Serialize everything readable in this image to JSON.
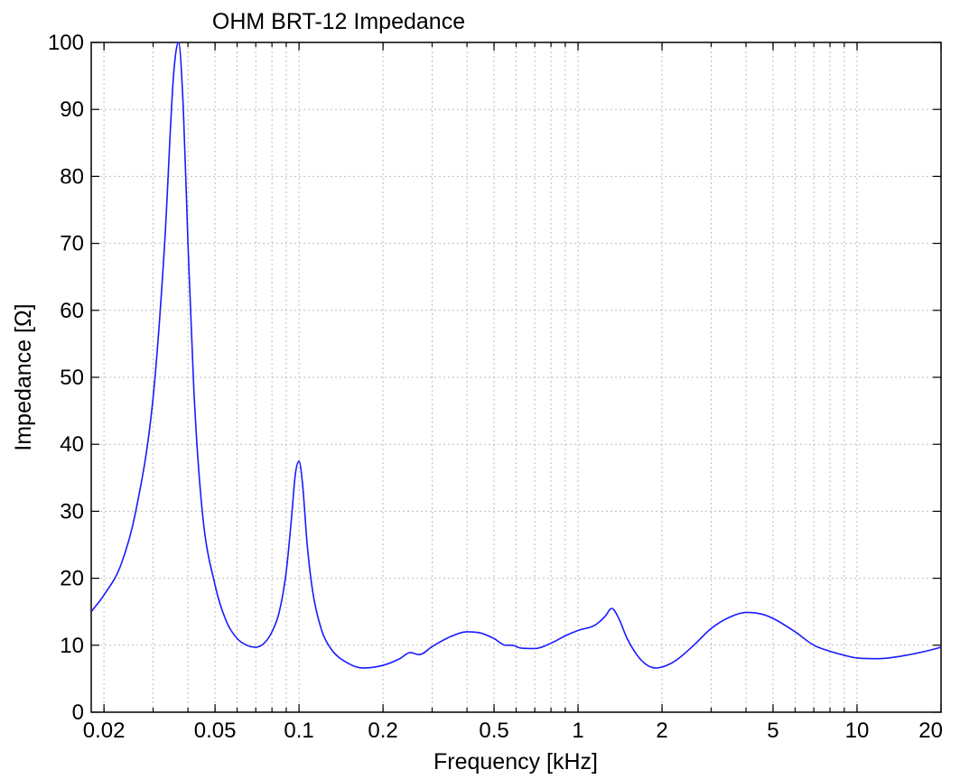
{
  "chart_data": {
    "type": "line",
    "title": "OHM BRT-12 Impedance",
    "xlabel": "Frequency [kHz]",
    "ylabel": "Impedance [Ω]",
    "xscale": "log",
    "xlim": [
      0.018,
      20
    ],
    "ylim": [
      0,
      100
    ],
    "grid": true,
    "x_tick_values": [
      0.02,
      0.05,
      0.1,
      0.2,
      0.5,
      1,
      2,
      5,
      10,
      20
    ],
    "x_tick_labels": [
      "0.02",
      "0.05",
      "0.1",
      "0.2",
      "0.5",
      "1",
      "2",
      "5",
      "10",
      "20"
    ],
    "y_ticks": [
      0,
      10,
      20,
      30,
      40,
      50,
      60,
      70,
      80,
      90,
      100
    ],
    "line_color": "#1a1aff",
    "series": [
      {
        "x": [
          0.018,
          0.02,
          0.023,
          0.026,
          0.03,
          0.033,
          0.0355,
          0.037,
          0.0385,
          0.04,
          0.042,
          0.045,
          0.05,
          0.055,
          0.06,
          0.065,
          0.07,
          0.075,
          0.08,
          0.085,
          0.09,
          0.094,
          0.097,
          0.1,
          0.103,
          0.107,
          0.112,
          0.12,
          0.13,
          0.15,
          0.17,
          0.2,
          0.23,
          0.25,
          0.27,
          0.3,
          0.35,
          0.4,
          0.45,
          0.5,
          0.55,
          0.58,
          0.62,
          0.7,
          0.8,
          0.9,
          1.0,
          1.15,
          1.25,
          1.32,
          1.4,
          1.5,
          1.7,
          1.9,
          2.2,
          2.6,
          3.0,
          3.5,
          4.0,
          4.5,
          5.0,
          6.0,
          7.0,
          8.0,
          9.0,
          10,
          12,
          15,
          18,
          20
        ],
        "y": [
          15,
          17.5,
          22,
          30,
          47,
          70,
          95,
          100,
          90,
          70,
          48,
          30,
          19,
          13.5,
          11,
          10,
          9.7,
          10.3,
          12,
          15,
          21,
          29,
          35.5,
          37.5,
          34,
          25,
          18,
          12.5,
          9.5,
          7.3,
          6.6,
          7,
          8,
          8.9,
          8.6,
          9.8,
          11.3,
          12,
          11.8,
          11,
          10,
          10,
          9.6,
          9.5,
          10.3,
          11.4,
          12.2,
          13,
          14.3,
          15.5,
          14,
          11,
          7.6,
          6.6,
          7.5,
          10,
          12.5,
          14.2,
          14.9,
          14.7,
          14,
          12,
          10,
          9.1,
          8.5,
          8.1,
          8,
          8.5,
          9.2,
          9.7
        ]
      }
    ]
  }
}
